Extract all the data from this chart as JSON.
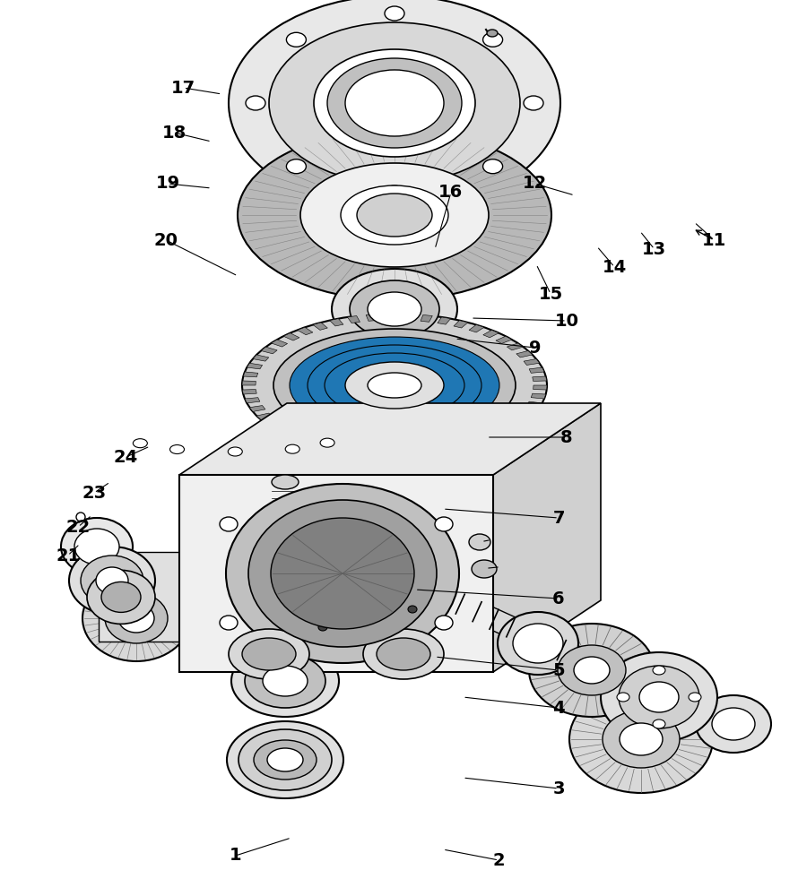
{
  "bg": "#ffffff",
  "lc": "#000000",
  "lw": 1.0,
  "parts_labels": [
    [
      1,
      0.295,
      0.955,
      0.365,
      0.935
    ],
    [
      2,
      0.625,
      0.96,
      0.555,
      0.948
    ],
    [
      3,
      0.7,
      0.88,
      0.58,
      0.868
    ],
    [
      4,
      0.7,
      0.79,
      0.58,
      0.778
    ],
    [
      5,
      0.7,
      0.748,
      0.545,
      0.733
    ],
    [
      6,
      0.7,
      0.668,
      0.52,
      0.658
    ],
    [
      7,
      0.7,
      0.578,
      0.555,
      0.568
    ],
    [
      8,
      0.71,
      0.488,
      0.61,
      0.488
    ],
    [
      9,
      0.67,
      0.388,
      0.57,
      0.378
    ],
    [
      10,
      0.71,
      0.358,
      0.59,
      0.355
    ],
    [
      11,
      0.895,
      0.268,
      0.87,
      0.248
    ],
    [
      12,
      0.67,
      0.205,
      0.72,
      0.218
    ],
    [
      13,
      0.82,
      0.278,
      0.802,
      0.258
    ],
    [
      14,
      0.77,
      0.298,
      0.748,
      0.275
    ],
    [
      15,
      0.69,
      0.328,
      0.672,
      0.295
    ],
    [
      16,
      0.565,
      0.215,
      0.545,
      0.278
    ],
    [
      17,
      0.23,
      0.098,
      0.278,
      0.105
    ],
    [
      18,
      0.218,
      0.148,
      0.265,
      0.158
    ],
    [
      19,
      0.21,
      0.205,
      0.265,
      0.21
    ],
    [
      20,
      0.208,
      0.268,
      0.298,
      0.308
    ],
    [
      21,
      0.085,
      0.62,
      0.1,
      0.607
    ],
    [
      22,
      0.098,
      0.588,
      0.115,
      0.575
    ],
    [
      23,
      0.118,
      0.55,
      0.138,
      0.538
    ],
    [
      24,
      0.158,
      0.51,
      0.188,
      0.498
    ]
  ]
}
